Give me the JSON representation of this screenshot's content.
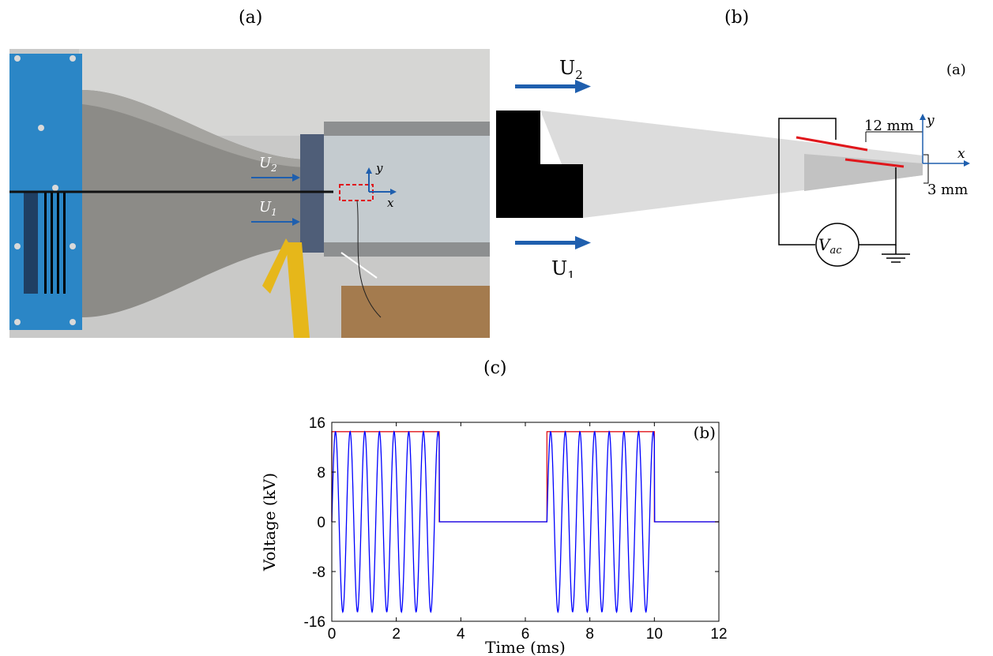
{
  "panels": {
    "a_label": "(a)",
    "b_label": "(b)",
    "c_label": "(c)"
  },
  "photo": {
    "u2_base": "U",
    "u2_sub": "2",
    "u1_base": "U",
    "u1_sub": "1",
    "axis_x": "x",
    "axis_y": "y"
  },
  "schematic": {
    "u2_base": "U",
    "u2_sub": "2",
    "u1_base": "U",
    "u1_sub": "1",
    "corner_label": "(a)",
    "dim_12": "12 mm",
    "dim_3": "3 mm",
    "axis_x": "x",
    "axis_y": "y",
    "source_base": "V",
    "source_sub": "ac",
    "colors": {
      "flow_arrow": "#1f5fae",
      "electrode": "#e0161b",
      "fluid": "#dcdcdc",
      "body": "#000000"
    }
  },
  "chart_data": {
    "type": "line",
    "corner_label": "(b)",
    "xlabel": "Time (ms)",
    "ylabel": "Voltage (kV)",
    "xlim": [
      0,
      12
    ],
    "ylim": [
      -16,
      16
    ],
    "xticks": [
      0,
      2,
      4,
      6,
      8,
      10,
      12
    ],
    "yticks": [
      16,
      8,
      0,
      -8,
      -16
    ],
    "ytick_labels": [
      "16",
      "8",
      "0",
      "-8",
      "-16"
    ],
    "grid": false,
    "series": [
      {
        "color": "#e0161b",
        "kind": "burst_envelope",
        "x": [
          0,
          0,
          3.33,
          3.33,
          6.67,
          6.67,
          10.0,
          10.0,
          12
        ],
        "y": [
          0,
          14.5,
          14.5,
          0,
          0,
          14.5,
          14.5,
          0,
          0
        ]
      },
      {
        "color": "#0000ff",
        "kind": "modulated_sine",
        "amplitude": 14.5,
        "frequency_khz": 2.2,
        "bursts": [
          [
            0,
            3.33
          ],
          [
            6.67,
            10.0
          ]
        ],
        "xmax": 12
      }
    ]
  }
}
